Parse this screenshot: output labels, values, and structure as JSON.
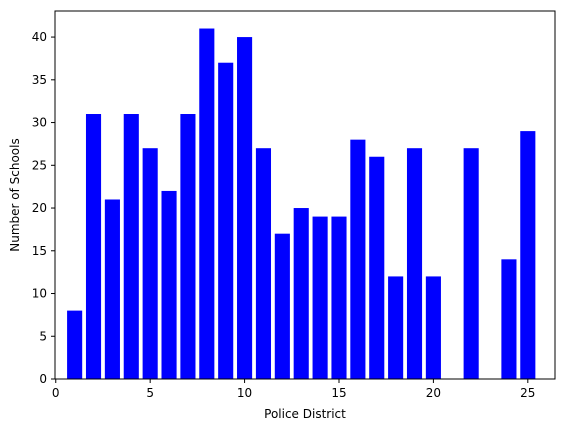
{
  "chart_data": {
    "type": "bar",
    "x": [
      1,
      2,
      3,
      4,
      5,
      6,
      7,
      8,
      9,
      10,
      11,
      12,
      13,
      14,
      15,
      16,
      17,
      18,
      19,
      20,
      22,
      24,
      25
    ],
    "values": [
      8,
      31,
      21,
      31,
      27,
      22,
      31,
      41,
      37,
      40,
      27,
      17,
      20,
      19,
      19,
      28,
      26,
      12,
      27,
      12,
      27,
      14,
      29
    ],
    "title": "",
    "xlabel": "Police District",
    "ylabel": "Number of Schools",
    "xlim": [
      -0.04,
      26.44
    ],
    "ylim": [
      0,
      43.05
    ],
    "xticks": [
      0,
      5,
      10,
      15,
      20,
      25
    ],
    "yticks": [
      0,
      5,
      10,
      15,
      20,
      25,
      30,
      35,
      40
    ],
    "bar_color": "#0000ff",
    "grid": false,
    "legend": "none"
  }
}
